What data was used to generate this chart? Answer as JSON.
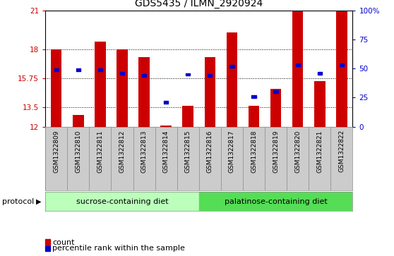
{
  "title": "GDS5435 / ILMN_2920924",
  "samples": [
    "GSM1322809",
    "GSM1322810",
    "GSM1322811",
    "GSM1322812",
    "GSM1322813",
    "GSM1322814",
    "GSM1322815",
    "GSM1322816",
    "GSM1322817",
    "GSM1322818",
    "GSM1322819",
    "GSM1322820",
    "GSM1322821",
    "GSM1322822"
  ],
  "count_values": [
    18.0,
    12.9,
    18.6,
    18.0,
    17.4,
    12.1,
    13.6,
    17.4,
    19.3,
    13.6,
    14.9,
    21.0,
    15.5,
    21.0
  ],
  "percentile_values": [
    49,
    49,
    49,
    46,
    44,
    21,
    45,
    44,
    52,
    26,
    30,
    53,
    46,
    53
  ],
  "ymin": 12,
  "ymax": 21,
  "yticks": [
    12,
    13.5,
    15.75,
    18,
    21
  ],
  "ytick_labels": [
    "12",
    "13.5",
    "15.75",
    "18",
    "21"
  ],
  "right_yticks": [
    0,
    25,
    50,
    75,
    100
  ],
  "right_ytick_labels": [
    "0",
    "25",
    "50",
    "75",
    "100%"
  ],
  "bar_color": "#cc0000",
  "percentile_color": "#0000cc",
  "bar_width": 0.5,
  "plot_bg": "#ffffff",
  "grid_color": "#000000",
  "sucrose_label": "sucrose-containing diet",
  "palatinose_label": "palatinose-containing diet",
  "sucrose_color": "#bbffbb",
  "palatinose_color": "#55dd55",
  "protocol_label": "protocol",
  "legend_count_label": "count",
  "legend_percentile_label": "percentile rank within the sample",
  "left_tick_color": "#cc0000",
  "right_tick_color": "#0000cc",
  "title_fontsize": 10,
  "tick_fontsize": 7.5,
  "label_fontsize": 8,
  "n_sucrose": 7,
  "n_palatinose": 7
}
